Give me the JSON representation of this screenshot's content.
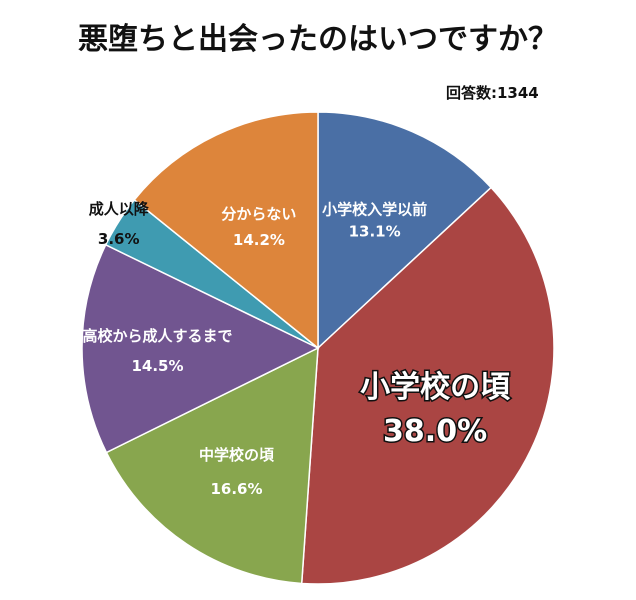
{
  "title": "悪堕ちと出会ったのはいつですか？",
  "respondents": "回答数:1344",
  "chart_data": {
    "type": "pie",
    "slices": [
      {
        "label": "小学校入学以前",
        "value": 13.1,
        "value_label": "13.1%",
        "color": "#4a6fa5"
      },
      {
        "label": "小学校の頃",
        "value": 38.0,
        "value_label": "38.0%",
        "color": "#aa4543"
      },
      {
        "label": "中学校の頃",
        "value": 16.6,
        "value_label": "16.6%",
        "color": "#88a64e"
      },
      {
        "label": "高校から成人するまで",
        "value": 14.5,
        "value_label": "14.5%",
        "color": "#715590"
      },
      {
        "label": "成人以降",
        "value": 3.6,
        "value_label": "3.6%",
        "color": "#3f9bb1"
      },
      {
        "label": "分からない",
        "value": 14.2,
        "value_label": "14.2%",
        "color": "#dd853b"
      }
    ]
  }
}
